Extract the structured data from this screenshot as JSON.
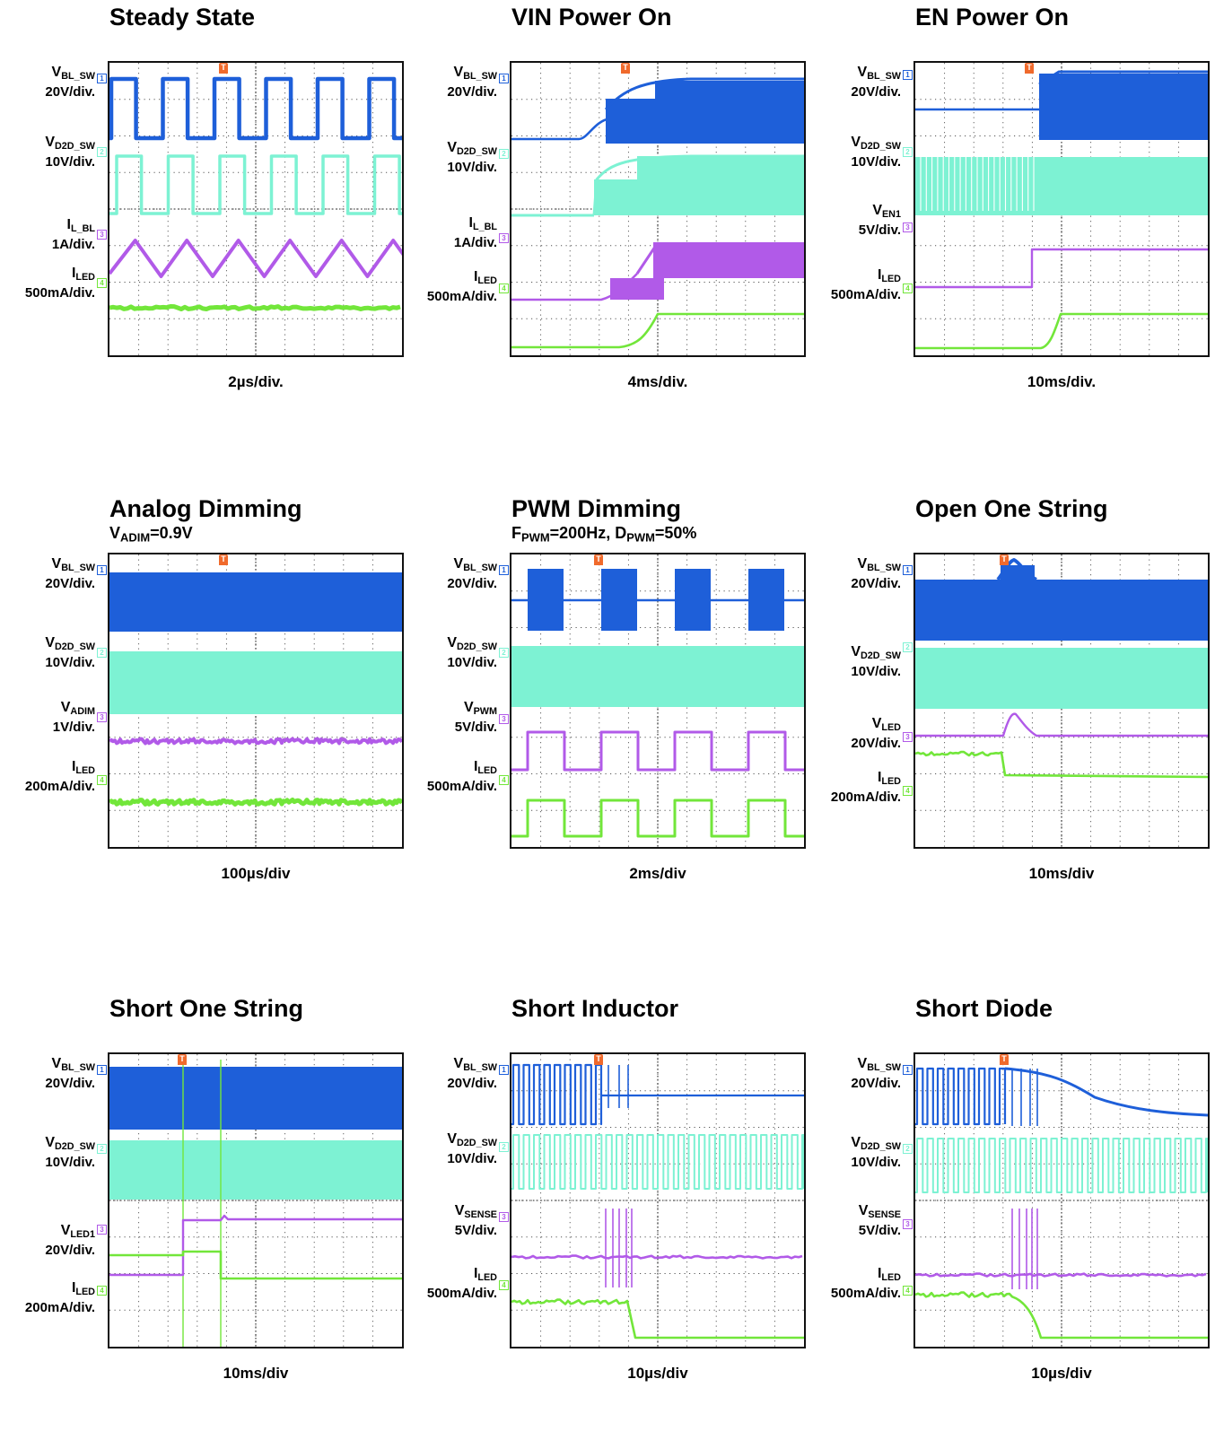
{
  "colors": {
    "ch1": "#1e5fd9",
    "ch2": "#7df2d3",
    "ch3": "#b15ae8",
    "ch4": "#72e63a",
    "trigger": "#f06a2c"
  },
  "panels": [
    {
      "title": "Steady State",
      "subtitle": "",
      "timebase": "2µs/div.",
      "channels": [
        {
          "num": "1",
          "name": "V",
          "sub": "BL_SW",
          "scale": "20V/div."
        },
        {
          "num": "2",
          "name": "V",
          "sub": "D2D_SW",
          "scale": "10V/div."
        },
        {
          "num": "3",
          "name": "I",
          "sub": "L_BL",
          "scale": "1A/div."
        },
        {
          "num": "4",
          "name": "I",
          "sub": "LED",
          "scale": "500mA/div."
        }
      ]
    },
    {
      "title": "VIN Power On",
      "subtitle": "",
      "timebase": "4ms/div.",
      "channels": [
        {
          "num": "1",
          "name": "V",
          "sub": "BL_SW",
          "scale": "20V/div."
        },
        {
          "num": "2",
          "name": "V",
          "sub": "D2D_SW",
          "scale": "10V/div."
        },
        {
          "num": "3",
          "name": "I",
          "sub": "L_BL",
          "scale": "1A/div."
        },
        {
          "num": "4",
          "name": "I",
          "sub": "LED",
          "scale": "500mA/div."
        }
      ]
    },
    {
      "title": "EN Power On",
      "subtitle": "",
      "timebase": "10ms/div.",
      "channels": [
        {
          "num": "1",
          "name": "V",
          "sub": "BL_SW",
          "scale": "20V/div."
        },
        {
          "num": "2",
          "name": "V",
          "sub": "D2D_SW",
          "scale": "10V/div."
        },
        {
          "num": "3",
          "name": "V",
          "sub": "EN1",
          "scale": "5V/div."
        },
        {
          "num": "4",
          "name": "I",
          "sub": "LED",
          "scale": "500mA/div."
        }
      ]
    },
    {
      "title": "Analog  Dimming",
      "subtitle": {
        "pre": "V",
        "sub": "ADIM",
        "post": "=0.9V"
      },
      "timebase": "100µs/div",
      "channels": [
        {
          "num": "1",
          "name": "V",
          "sub": "BL_SW",
          "scale": "20V/div."
        },
        {
          "num": "2",
          "name": "V",
          "sub": "D2D_SW",
          "scale": "10V/div."
        },
        {
          "num": "3",
          "name": "V",
          "sub": "ADIM",
          "scale": "1V/div."
        },
        {
          "num": "4",
          "name": "I",
          "sub": "LED",
          "scale": "200mA/div."
        }
      ]
    },
    {
      "title": "PWM Dimming",
      "subtitle": {
        "pre": "F",
        "sub": "PWM",
        "post": "=200Hz, D",
        "sub2": "PWM",
        "post2": "=50%"
      },
      "timebase": "2ms/div",
      "channels": [
        {
          "num": "1",
          "name": "V",
          "sub": "BL_SW",
          "scale": "20V/div."
        },
        {
          "num": "2",
          "name": "V",
          "sub": "D2D_SW",
          "scale": "10V/div."
        },
        {
          "num": "3",
          "name": "V",
          "sub": "PWM",
          "scale": "5V/div."
        },
        {
          "num": "4",
          "name": "I",
          "sub": "LED",
          "scale": "500mA/div."
        }
      ]
    },
    {
      "title": "Open One String",
      "subtitle": "",
      "timebase": "10ms/div",
      "channels": [
        {
          "num": "1",
          "name": "V",
          "sub": "BL_SW",
          "scale": "20V/div."
        },
        {
          "num": "2",
          "name": "V",
          "sub": "D2D_SW",
          "scale": "10V/div."
        },
        {
          "num": "3",
          "name": "V",
          "sub": "LED",
          "scale": "20V/div."
        },
        {
          "num": "4",
          "name": "I",
          "sub": "LED",
          "scale": "200mA/div."
        }
      ]
    },
    {
      "title": "Short One String",
      "subtitle": "",
      "timebase": "10ms/div",
      "channels": [
        {
          "num": "1",
          "name": "V",
          "sub": "BL_SW",
          "scale": "20V/div."
        },
        {
          "num": "2",
          "name": "V",
          "sub": "D2D_SW",
          "scale": "10V/div."
        },
        {
          "num": "3",
          "name": "V",
          "sub": "LED1",
          "scale": "20V/div."
        },
        {
          "num": "4",
          "name": "I",
          "sub": "LED",
          "scale": "200mA/div."
        }
      ]
    },
    {
      "title": "Short Inductor",
      "subtitle": "",
      "timebase": "10µs/div",
      "channels": [
        {
          "num": "1",
          "name": "V",
          "sub": "BL_SW",
          "scale": "20V/div."
        },
        {
          "num": "2",
          "name": "V",
          "sub": "D2D_SW",
          "scale": "10V/div."
        },
        {
          "num": "3",
          "name": "V",
          "sub": "SENSE",
          "scale": "5V/div."
        },
        {
          "num": "4",
          "name": "I",
          "sub": "LED",
          "scale": "500mA/div."
        }
      ]
    },
    {
      "title": "Short Diode",
      "subtitle": "",
      "timebase": "10µs/div",
      "channels": [
        {
          "num": "1",
          "name": "V",
          "sub": "BL_SW",
          "scale": "20V/div."
        },
        {
          "num": "2",
          "name": "V",
          "sub": "D2D_SW",
          "scale": "10V/div."
        },
        {
          "num": "3",
          "name": "V",
          "sub": "SENSE",
          "scale": "5V/div."
        },
        {
          "num": "4",
          "name": "I",
          "sub": "LED",
          "scale": "500mA/div."
        }
      ]
    }
  ],
  "chart_data": {
    "type": "line",
    "grid": true,
    "divisions": {
      "x": 10,
      "y": 8
    },
    "trigger_marker": "T",
    "note": "Oscilloscope waveform captures; each panel shows four channels (1: switch node, 2: D2D switch, 3: current/voltage, 4: LED current)."
  }
}
